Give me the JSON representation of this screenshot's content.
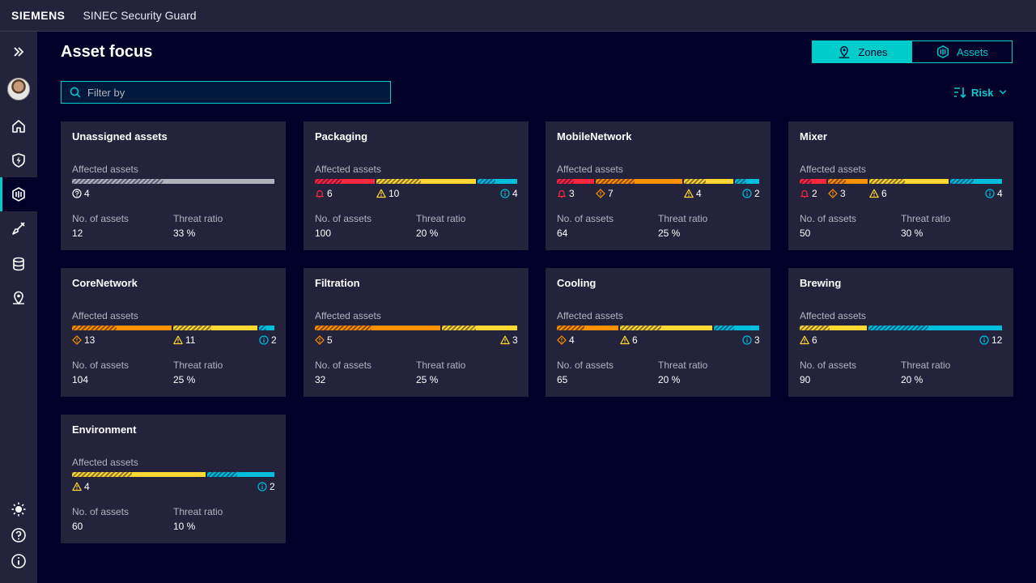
{
  "header": {
    "brand": "SIEMENS",
    "app_title": "SINEC Security Guard"
  },
  "page": {
    "title": "Asset focus"
  },
  "view_toggle": {
    "zones_label": "Zones",
    "assets_label": "Assets",
    "selected": "Zones"
  },
  "filter": {
    "placeholder": "Filter by",
    "value": ""
  },
  "sort": {
    "label": "Risk"
  },
  "colors": {
    "background": "#000028",
    "surface": "#23233c",
    "accent": "#00cccc",
    "critical": "#ff2640",
    "high": "#ff9000",
    "medium": "#ffd732",
    "low": "#00bedc",
    "unknown": "#b3b3be"
  },
  "sidebar": {
    "items": [
      {
        "icon": "double-chevron-right-icon"
      },
      {
        "icon": "avatar"
      },
      {
        "icon": "home-icon"
      },
      {
        "icon": "shield-lightning-icon"
      },
      {
        "icon": "asset-focus-icon",
        "active": true
      },
      {
        "icon": "probe-icon"
      },
      {
        "icon": "database-icon"
      },
      {
        "icon": "location-icon"
      },
      {
        "icon": "sun-icon"
      },
      {
        "icon": "help-icon"
      },
      {
        "icon": "info-icon"
      }
    ]
  },
  "labels": {
    "affected_assets": "Affected assets",
    "no_of_assets": "No. of assets",
    "threat_ratio": "Threat ratio"
  },
  "cards": [
    {
      "title": "Unassigned assets",
      "counts": {
        "unknown": "4"
      },
      "assets": "12",
      "ratio": "33 %"
    },
    {
      "title": "Packaging",
      "counts": {
        "critical": "6",
        "medium": "10",
        "low": "4"
      },
      "assets": "100",
      "ratio": "20 %"
    },
    {
      "title": "MobileNetwork",
      "counts": {
        "critical": "3",
        "high": "7",
        "medium": "4",
        "low": "2"
      },
      "assets": "64",
      "ratio": "25 %"
    },
    {
      "title": "Mixer",
      "counts": {
        "critical": "2",
        "high": "3",
        "medium": "6",
        "low": "4"
      },
      "assets": "50",
      "ratio": "30 %"
    },
    {
      "title": "CoreNetwork",
      "counts": {
        "high": "13",
        "medium": "11",
        "low": "2"
      },
      "assets": "104",
      "ratio": "25 %"
    },
    {
      "title": "Filtration",
      "counts": {
        "high": "5",
        "medium": "3"
      },
      "assets": "32",
      "ratio": "25 %"
    },
    {
      "title": "Cooling",
      "counts": {
        "high": "4",
        "medium": "6",
        "low": "3"
      },
      "assets": "65",
      "ratio": "20 %"
    },
    {
      "title": "Brewing",
      "counts": {
        "medium": "6",
        "low": "12"
      },
      "assets": "90",
      "ratio": "20 %"
    },
    {
      "title": "Environment",
      "counts": {
        "medium": "4",
        "low": "2"
      },
      "assets": "60",
      "ratio": "10 %"
    }
  ]
}
